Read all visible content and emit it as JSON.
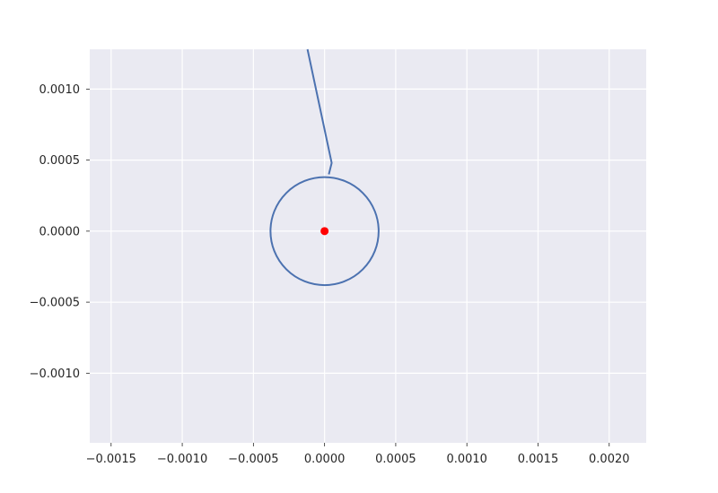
{
  "chart_data": {
    "type": "line",
    "title": "",
    "xlabel": "",
    "ylabel": "",
    "xlim": [
      -0.00165,
      0.00226
    ],
    "ylim": [
      -0.00149,
      0.00128
    ],
    "grid": true,
    "x_ticks": [
      {
        "value": -0.0015,
        "label": "−0.0015"
      },
      {
        "value": -0.001,
        "label": "−0.0010"
      },
      {
        "value": -0.0005,
        "label": "−0.0005"
      },
      {
        "value": 0.0,
        "label": "0.0000"
      },
      {
        "value": 0.0005,
        "label": "0.0005"
      },
      {
        "value": 0.001,
        "label": "0.0010"
      },
      {
        "value": 0.0015,
        "label": "0.0015"
      },
      {
        "value": 0.002,
        "label": "0.0020"
      }
    ],
    "y_ticks": [
      {
        "value": -0.001,
        "label": "−0.0010"
      },
      {
        "value": -0.0005,
        "label": "−0.0005"
      },
      {
        "value": 0.0,
        "label": "0.0000"
      },
      {
        "value": 0.0005,
        "label": "0.0005"
      },
      {
        "value": 0.001,
        "label": "0.0010"
      }
    ],
    "series": [
      {
        "kind": "trajectory-line",
        "color": "#4c72b0",
        "points": [
          [
            -0.00012,
            0.00128
          ],
          [
            5e-05,
            0.00048
          ],
          [
            3e-05,
            0.0004
          ]
        ]
      },
      {
        "kind": "circle-orbit",
        "color": "#4c72b0",
        "center": [
          0.0,
          0.0
        ],
        "radius": 0.00038
      },
      {
        "kind": "point",
        "color": "#ff0000",
        "x": 0.0,
        "y": 0.0
      }
    ],
    "colors": {
      "plot_background": "#eaeaf2",
      "grid": "#ffffff",
      "line": "#4c72b0",
      "marker": "#ff0000"
    }
  }
}
